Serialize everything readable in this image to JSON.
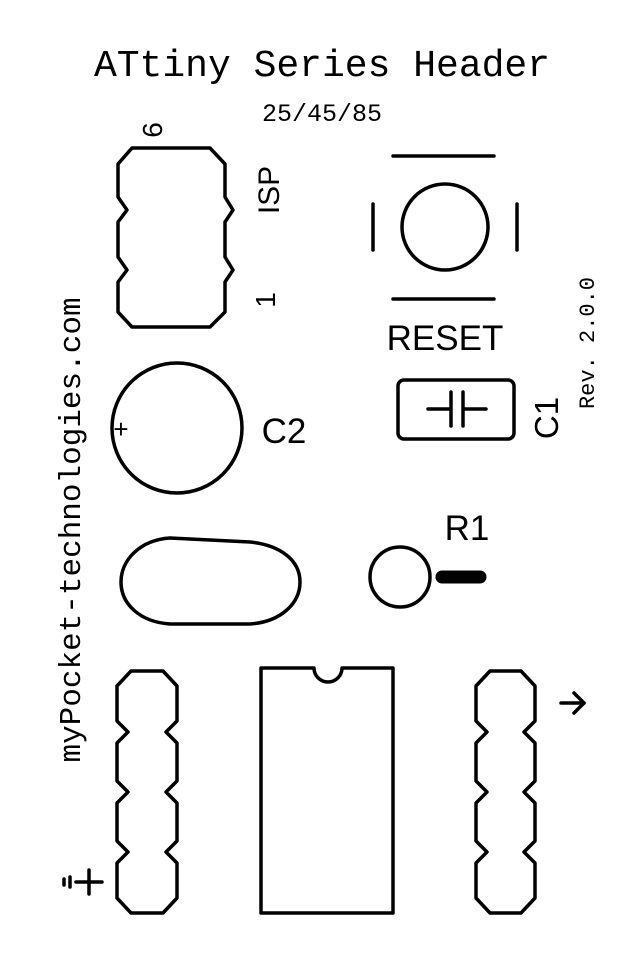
{
  "title": "ATtiny Series Header",
  "subtitle": "25/45/85",
  "website": "myPocket-technologies.com",
  "revision": "Rev. 2.0.0",
  "isp": {
    "label": "ISP",
    "pin_top": "6",
    "pin_bottom": "1"
  },
  "reset": {
    "label": "RESET"
  },
  "c1": {
    "label": "C1"
  },
  "c2": {
    "label": "C2",
    "polarity": "+"
  },
  "r1": {
    "label": "R1"
  },
  "symbols": {
    "left_header": "ground-icon",
    "right_header": "arrow-right-icon"
  }
}
